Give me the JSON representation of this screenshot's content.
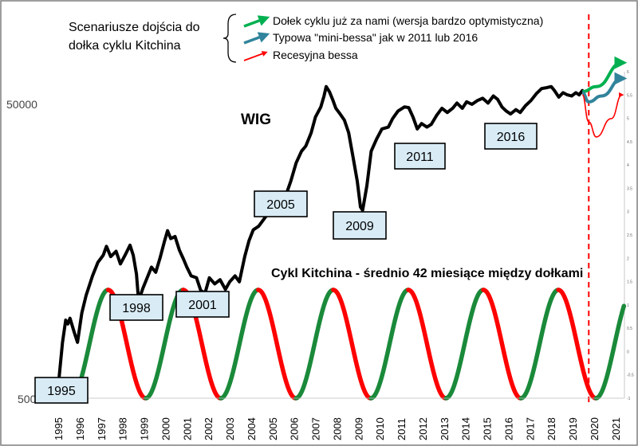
{
  "chart_data": {
    "type": "line",
    "scenarios_title_line1": "Scenariusze dojścia do",
    "scenarios_title_line2": "dołka cyklu Kitchina",
    "legend": [
      {
        "label": "Dołek cyklu już za nami (wersja bardzo optymistyczna)",
        "color": "#00b050"
      },
      {
        "label": "Typowa \"mini-bessa\" jak w 2011 lub 2016",
        "color": "#31849b"
      },
      {
        "label": "Recesyjna bessa",
        "color": "#ff0000"
      }
    ],
    "wig_label": "WIG",
    "cycle_label": "Cykl Kitchina - średnio 42 miesiące między dołkami",
    "y_ticks_shown": [
      "50000",
      "500"
    ],
    "y_scale": "log",
    "x_ticks": [
      "1995",
      "1996",
      "1997",
      "1998",
      "1999",
      "2000",
      "2001",
      "2002",
      "2003",
      "2004",
      "2005",
      "2006",
      "2007",
      "2008",
      "2009",
      "2010",
      "2011",
      "2012",
      "2013",
      "2014",
      "2015",
      "2016",
      "2017",
      "2018",
      "2019",
      "2020",
      "2021"
    ],
    "right_axis_ticks": [
      "-1",
      "-0.5",
      "0",
      "0.5",
      "1",
      "1.5",
      "2",
      "2.5",
      "3",
      "3.5",
      "4",
      "4.5",
      "5",
      "5.5",
      "6"
    ],
    "callouts": [
      "1995",
      "1998",
      "2001",
      "2005",
      "2009",
      "2011",
      "2016"
    ],
    "wig_series_name": "WIG",
    "wig": [
      [
        1995.0,
        600
      ],
      [
        1995.2,
        1200
      ],
      [
        1995.35,
        1700
      ],
      [
        1995.45,
        1600
      ],
      [
        1995.55,
        1750
      ],
      [
        1995.75,
        1400
      ],
      [
        1995.9,
        1200
      ],
      [
        1996.1,
        1900
      ],
      [
        1996.3,
        2500
      ],
      [
        1996.6,
        3400
      ],
      [
        1996.85,
        4200
      ],
      [
        1997.1,
        4700
      ],
      [
        1997.25,
        5400
      ],
      [
        1997.45,
        4600
      ],
      [
        1997.7,
        5000
      ],
      [
        1997.9,
        4100
      ],
      [
        1998.15,
        4800
      ],
      [
        1998.35,
        5500
      ],
      [
        1998.5,
        4700
      ],
      [
        1998.65,
        3500
      ],
      [
        1998.75,
        2300
      ],
      [
        1998.95,
        2800
      ],
      [
        1999.15,
        3300
      ],
      [
        1999.35,
        3900
      ],
      [
        1999.55,
        3600
      ],
      [
        1999.75,
        4500
      ],
      [
        1999.95,
        5800
      ],
      [
        2000.1,
        6900
      ],
      [
        2000.25,
        6100
      ],
      [
        2000.45,
        6300
      ],
      [
        2000.65,
        5100
      ],
      [
        2000.85,
        4400
      ],
      [
        2001.0,
        3900
      ],
      [
        2001.2,
        3400
      ],
      [
        2001.45,
        3300
      ],
      [
        2001.65,
        2700
      ],
      [
        2001.85,
        2600
      ],
      [
        2002.05,
        3300
      ],
      [
        2002.3,
        3000
      ],
      [
        2002.55,
        3200
      ],
      [
        2002.8,
        2750
      ],
      [
        2003.0,
        3100
      ],
      [
        2003.25,
        3400
      ],
      [
        2003.45,
        3100
      ],
      [
        2003.7,
        4600
      ],
      [
        2003.9,
        5900
      ],
      [
        2004.1,
        7000
      ],
      [
        2004.35,
        7400
      ],
      [
        2004.6,
        8300
      ],
      [
        2004.85,
        9300
      ],
      [
        2005.1,
        10200
      ],
      [
        2005.35,
        10000
      ],
      [
        2005.6,
        11800
      ],
      [
        2005.85,
        15000
      ],
      [
        2006.1,
        20000
      ],
      [
        2006.35,
        24000
      ],
      [
        2006.55,
        26000
      ],
      [
        2006.8,
        32000
      ],
      [
        2007.0,
        41000
      ],
      [
        2007.25,
        48000
      ],
      [
        2007.4,
        57000
      ],
      [
        2007.5,
        66000
      ],
      [
        2007.65,
        61000
      ],
      [
        2007.8,
        54000
      ],
      [
        2007.95,
        47000
      ],
      [
        2008.15,
        43000
      ],
      [
        2008.35,
        39000
      ],
      [
        2008.55,
        32000
      ],
      [
        2008.75,
        22000
      ],
      [
        2008.95,
        15000
      ],
      [
        2009.1,
        10000
      ],
      [
        2009.2,
        9500
      ],
      [
        2009.4,
        14000
      ],
      [
        2009.6,
        24000
      ],
      [
        2009.85,
        29000
      ],
      [
        2010.1,
        34000
      ],
      [
        2010.4,
        35000
      ],
      [
        2010.6,
        40000
      ],
      [
        2010.85,
        45000
      ],
      [
        2011.15,
        48000
      ],
      [
        2011.35,
        47500
      ],
      [
        2011.55,
        41000
      ],
      [
        2011.75,
        34000
      ],
      [
        2011.95,
        37000
      ],
      [
        2012.2,
        35000
      ],
      [
        2012.4,
        36500
      ],
      [
        2012.65,
        42000
      ],
      [
        2012.9,
        47000
      ],
      [
        2013.15,
        44000
      ],
      [
        2013.4,
        47000
      ],
      [
        2013.6,
        51000
      ],
      [
        2013.85,
        47000
      ],
      [
        2014.05,
        52000
      ],
      [
        2014.3,
        50000
      ],
      [
        2014.55,
        53000
      ],
      [
        2014.8,
        55000
      ],
      [
        2015.05,
        51000
      ],
      [
        2015.3,
        57000
      ],
      [
        2015.5,
        54000
      ],
      [
        2015.7,
        48000
      ],
      [
        2015.9,
        45000
      ],
      [
        2016.1,
        43000
      ],
      [
        2016.35,
        46000
      ],
      [
        2016.55,
        44000
      ],
      [
        2016.8,
        49000
      ],
      [
        2017.05,
        53000
      ],
      [
        2017.3,
        59000
      ],
      [
        2017.55,
        64000
      ],
      [
        2017.8,
        65000
      ],
      [
        2018.0,
        66000
      ],
      [
        2018.15,
        62000
      ],
      [
        2018.35,
        56000
      ],
      [
        2018.55,
        60000
      ],
      [
        2018.75,
        58000
      ],
      [
        2018.95,
        57000
      ],
      [
        2019.15,
        60000
      ],
      [
        2019.3,
        58000
      ],
      [
        2019.45,
        62000
      ]
    ],
    "scenario_arrows": [
      {
        "name": "optimistic",
        "color": "#00b050",
        "points": [
          [
            2019.45,
            61000
          ],
          [
            2020.1,
            66000
          ],
          [
            2021.3,
            96000
          ]
        ]
      },
      {
        "name": "mini-bear",
        "color": "#31849b",
        "points": [
          [
            2019.45,
            60000
          ],
          [
            2019.75,
            52000
          ],
          [
            2020.35,
            57000
          ],
          [
            2021.3,
            75000
          ]
        ]
      },
      {
        "name": "recession",
        "color": "#ff0000",
        "points": [
          [
            2019.45,
            58000
          ],
          [
            2019.75,
            38000
          ],
          [
            2020.1,
            30000
          ],
          [
            2020.8,
            40000
          ],
          [
            2021.3,
            58000
          ]
        ]
      }
    ],
    "cycle": {
      "first_trough": 1995.58,
      "period_years": 3.5,
      "min": -1,
      "max": 1,
      "end": 2021.4,
      "rising_color": "#1a8a3a",
      "falling_color": "#ff0000"
    },
    "vertical_line": {
      "x": 2019.75,
      "color": "#ff0000"
    }
  }
}
